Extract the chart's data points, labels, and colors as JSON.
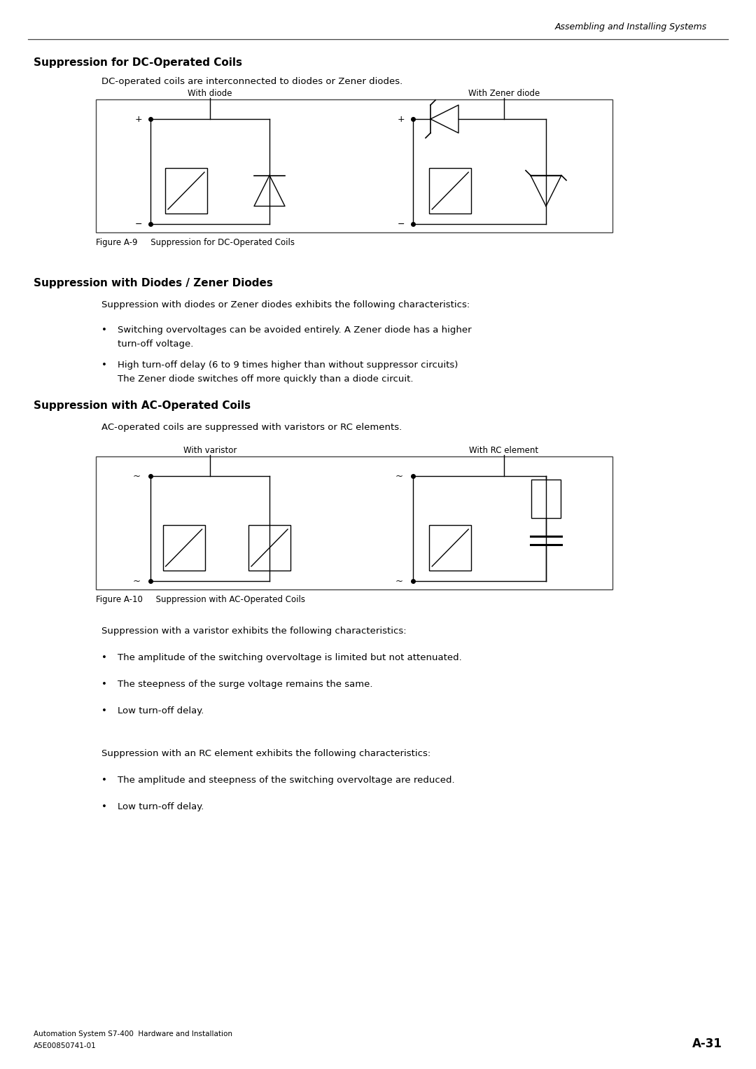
{
  "page_title_right": "Assembling and Installing Systems",
  "section1_heading": "Suppression for DC-Operated Coils",
  "section1_intro": "DC-operated coils are interconnected to diodes or Zener diodes.",
  "fig1_label": "Figure A-9     Suppression for DC-Operated Coils",
  "fig1_left_title": "With diode",
  "fig1_right_title": "With Zener diode",
  "section2_heading": "Suppression with Diodes / Zener Diodes",
  "section2_intro": "Suppression with diodes or Zener diodes exhibits the following characteristics:",
  "section2_bullet1_line1": "Switching overvoltages can be avoided entirely. A Zener diode has a higher",
  "section2_bullet1_line2": "turn-off voltage.",
  "section2_bullet2_line1": "High turn-off delay (6 to 9 times higher than without suppressor circuits)",
  "section2_bullet2_line2": "The Zener diode switches off more quickly than a diode circuit.",
  "section3_heading": "Suppression with AC-Operated Coils",
  "section3_intro": "AC-operated coils are suppressed with varistors or RC elements.",
  "fig2_label": "Figure A-10     Suppression with AC-Operated Coils",
  "fig2_left_title": "With varistor",
  "fig2_right_title": "With RC element",
  "section4_intro": "Suppression with a varistor exhibits the following characteristics:",
  "section4_bullet1": "The amplitude of the switching overvoltage is limited but not attenuated.",
  "section4_bullet2": "The steepness of the surge voltage remains the same.",
  "section4_bullet3": "Low turn-off delay.",
  "section5_intro": "Suppression with an RC element exhibits the following characteristics:",
  "section5_bullet1": "The amplitude and steepness of the switching overvoltage are reduced.",
  "section5_bullet2": "Low turn-off delay.",
  "footer_left1": "Automation System S7-400  Hardware and Installation",
  "footer_left2": "A5E00850741-01",
  "footer_right": "A-31",
  "bg_color": "#ffffff"
}
